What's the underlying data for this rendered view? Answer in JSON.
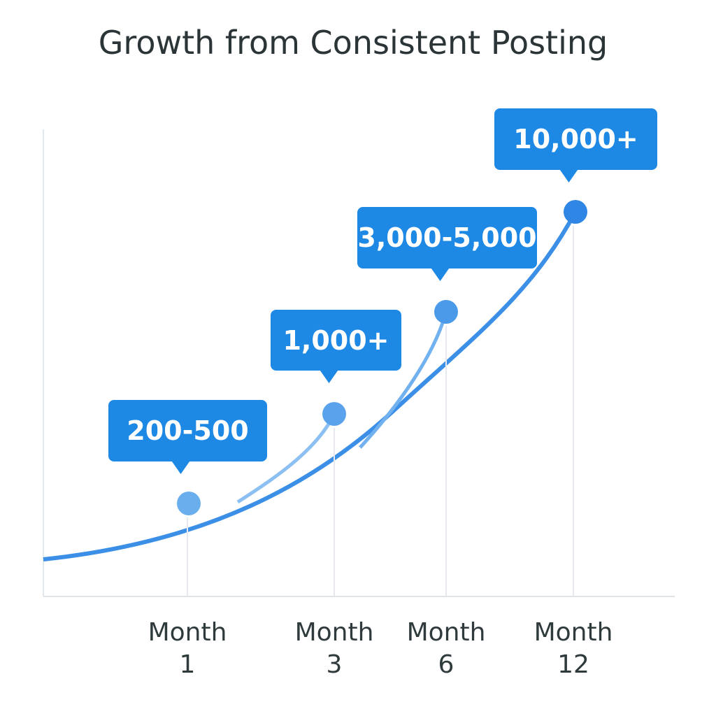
{
  "chart_data": {
    "type": "milestone-curve",
    "title": "Growth from Consistent Posting",
    "points": [
      {
        "category": "Month 1",
        "label": "200-500"
      },
      {
        "category": "Month 3",
        "label": "1,000+"
      },
      {
        "category": "Month 6",
        "label": "3,000-5,000"
      },
      {
        "category": "Month 12",
        "label": "10,000+"
      }
    ]
  }
}
